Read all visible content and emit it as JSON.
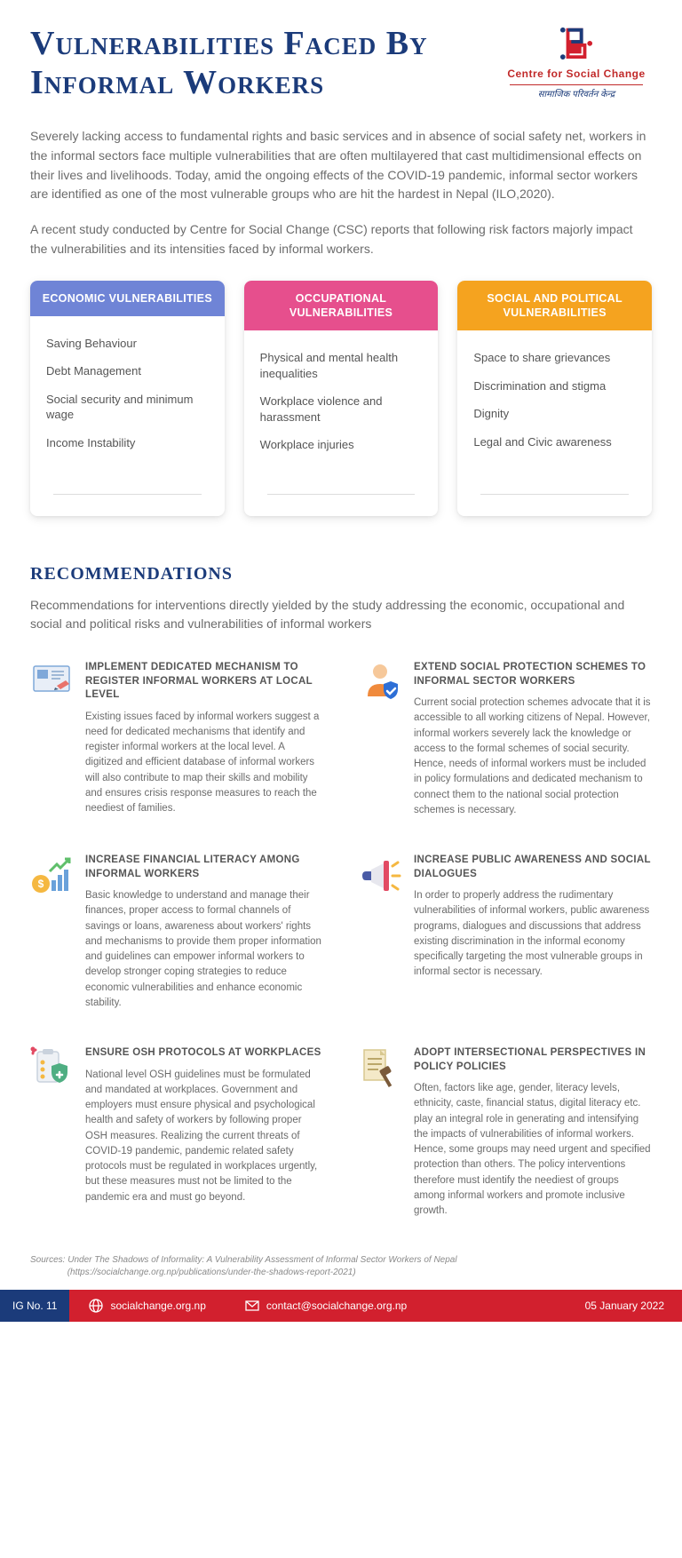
{
  "header": {
    "title": "Vulnerabilities Faced By Informal Workers",
    "logo_org": "Centre for Social Change",
    "logo_tagline": "सामाजिक परिवर्तन केन्द्र"
  },
  "intro": {
    "p1": "Severely lacking access to fundamental rights and basic services and in absence of social safety net,  workers in the informal sectors face multiple vulnerabilities that are often multilayered that cast multidimensional effects on their lives and livelihoods. Today, amid the ongoing effects of the COVID-19 pandemic, informal sector workers are identified as one of the most vulnerable groups who are hit the hardest in Nepal (ILO,2020).",
    "p2": "A recent study conducted by Centre for Social Change (CSC) reports that following risk factors majorly impact the vulnerabilities and its intensities faced by informal workers."
  },
  "cards": [
    {
      "title": "ECONOMIC VULNERABILITIES",
      "color": "#6f84d6",
      "items": [
        "Saving Behaviour",
        "Debt Management",
        "Social security and minimum wage",
        "Income Instability"
      ]
    },
    {
      "title": "OCCUPATIONAL VULNERABILITIES",
      "color": "#e64f8d",
      "items": [
        "Physical and mental health inequalities",
        "Workplace violence and harassment",
        "Workplace injuries"
      ]
    },
    {
      "title": "SOCIAL AND POLITICAL VULNERABILITIES",
      "color": "#f5a31f",
      "items": [
        "Space to share grievances",
        "Discrimination and stigma",
        "Dignity",
        "Legal and Civic awareness"
      ]
    }
  ],
  "recommendations": {
    "heading": "RECOMMENDATIONS",
    "intro": "Recommendations for interventions directly yielded by the study addressing the economic, occupational and social and political risks and vulnerabilities of informal workers",
    "items": [
      {
        "title": "IMPLEMENT DEDICATED MECHANISM TO REGISTER INFORMAL WORKERS AT LOCAL LEVEL",
        "body": "Existing issues faced by informal workers suggest a need for dedicated mechanisms that identify and register informal workers at the local level. A digitized and efficient database of informal workers will also contribute to map their skills and mobility  and ensures crisis response measures to reach the neediest of families."
      },
      {
        "title": "EXTEND SOCIAL PROTECTION SCHEMES TO INFORMAL SECTOR WORKERS",
        "body": "Current social protection schemes advocate that it is accessible to all working citizens of Nepal. However, informal workers severely lack the knowledge or access to the formal schemes of social security. Hence, needs of informal workers must be included in policy formulations and dedicated mechanism to connect them to the national social protection schemes is necessary."
      },
      {
        "title": "INCREASE FINANCIAL LITERACY AMONG INFORMAL WORKERS",
        "body": "Basic knowledge to understand and manage their finances, proper access to formal channels of savings or loans, awareness about workers' rights and mechanisms to provide them proper information and guidelines can empower informal workers to develop stronger coping strategies to reduce economic vulnerabilities and enhance economic stability."
      },
      {
        "title": "INCREASE PUBLIC AWARENESS AND SOCIAL DIALOGUES",
        "body": "In order to properly address the rudimentary vulnerabilities of informal workers, public awareness programs, dialogues and discussions that address existing discrimination in the informal economy specifically targeting the most vulnerable groups in informal sector is necessary."
      },
      {
        "title": "ENSURE OSH PROTOCOLS AT WORKPLACES",
        "body": "National level OSH guidelines must be formulated and mandated at workplaces. Government and employers must ensure physical and psychological health and safety of workers by following proper OSH measures. Realizing the current threats of COVID-19 pandemic, pandemic related safety protocols must be regulated in workplaces urgently, but these measures must not be limited to the pandemic era and must go beyond."
      },
      {
        "title": "ADOPT INTERSECTIONAL PERSPECTIVES IN POLICY POLICIES",
        "body": "Often, factors like age, gender, literacy levels, ethnicity, caste, financial status, digital literacy etc. play an integral role in generating and intensifying the impacts of vulnerabilities of informal workers. Hence, some groups may need urgent and specified protection than others. The policy interventions therefore must identify the neediest of groups among informal workers and promote inclusive growth."
      }
    ]
  },
  "sources": {
    "label": "Sources:",
    "text": "Under The Shadows of Informality: A Vulnerability Assessment of Informal Sector Workers of Nepal",
    "url_text": "(https://socialchange.org.np/publications/under-the-shadows-report-2021)"
  },
  "footer": {
    "ig": "IG No. 11",
    "website": "socialchange.org.np",
    "email": "contact@socialchange.org.np",
    "date": "05 January 2022"
  }
}
